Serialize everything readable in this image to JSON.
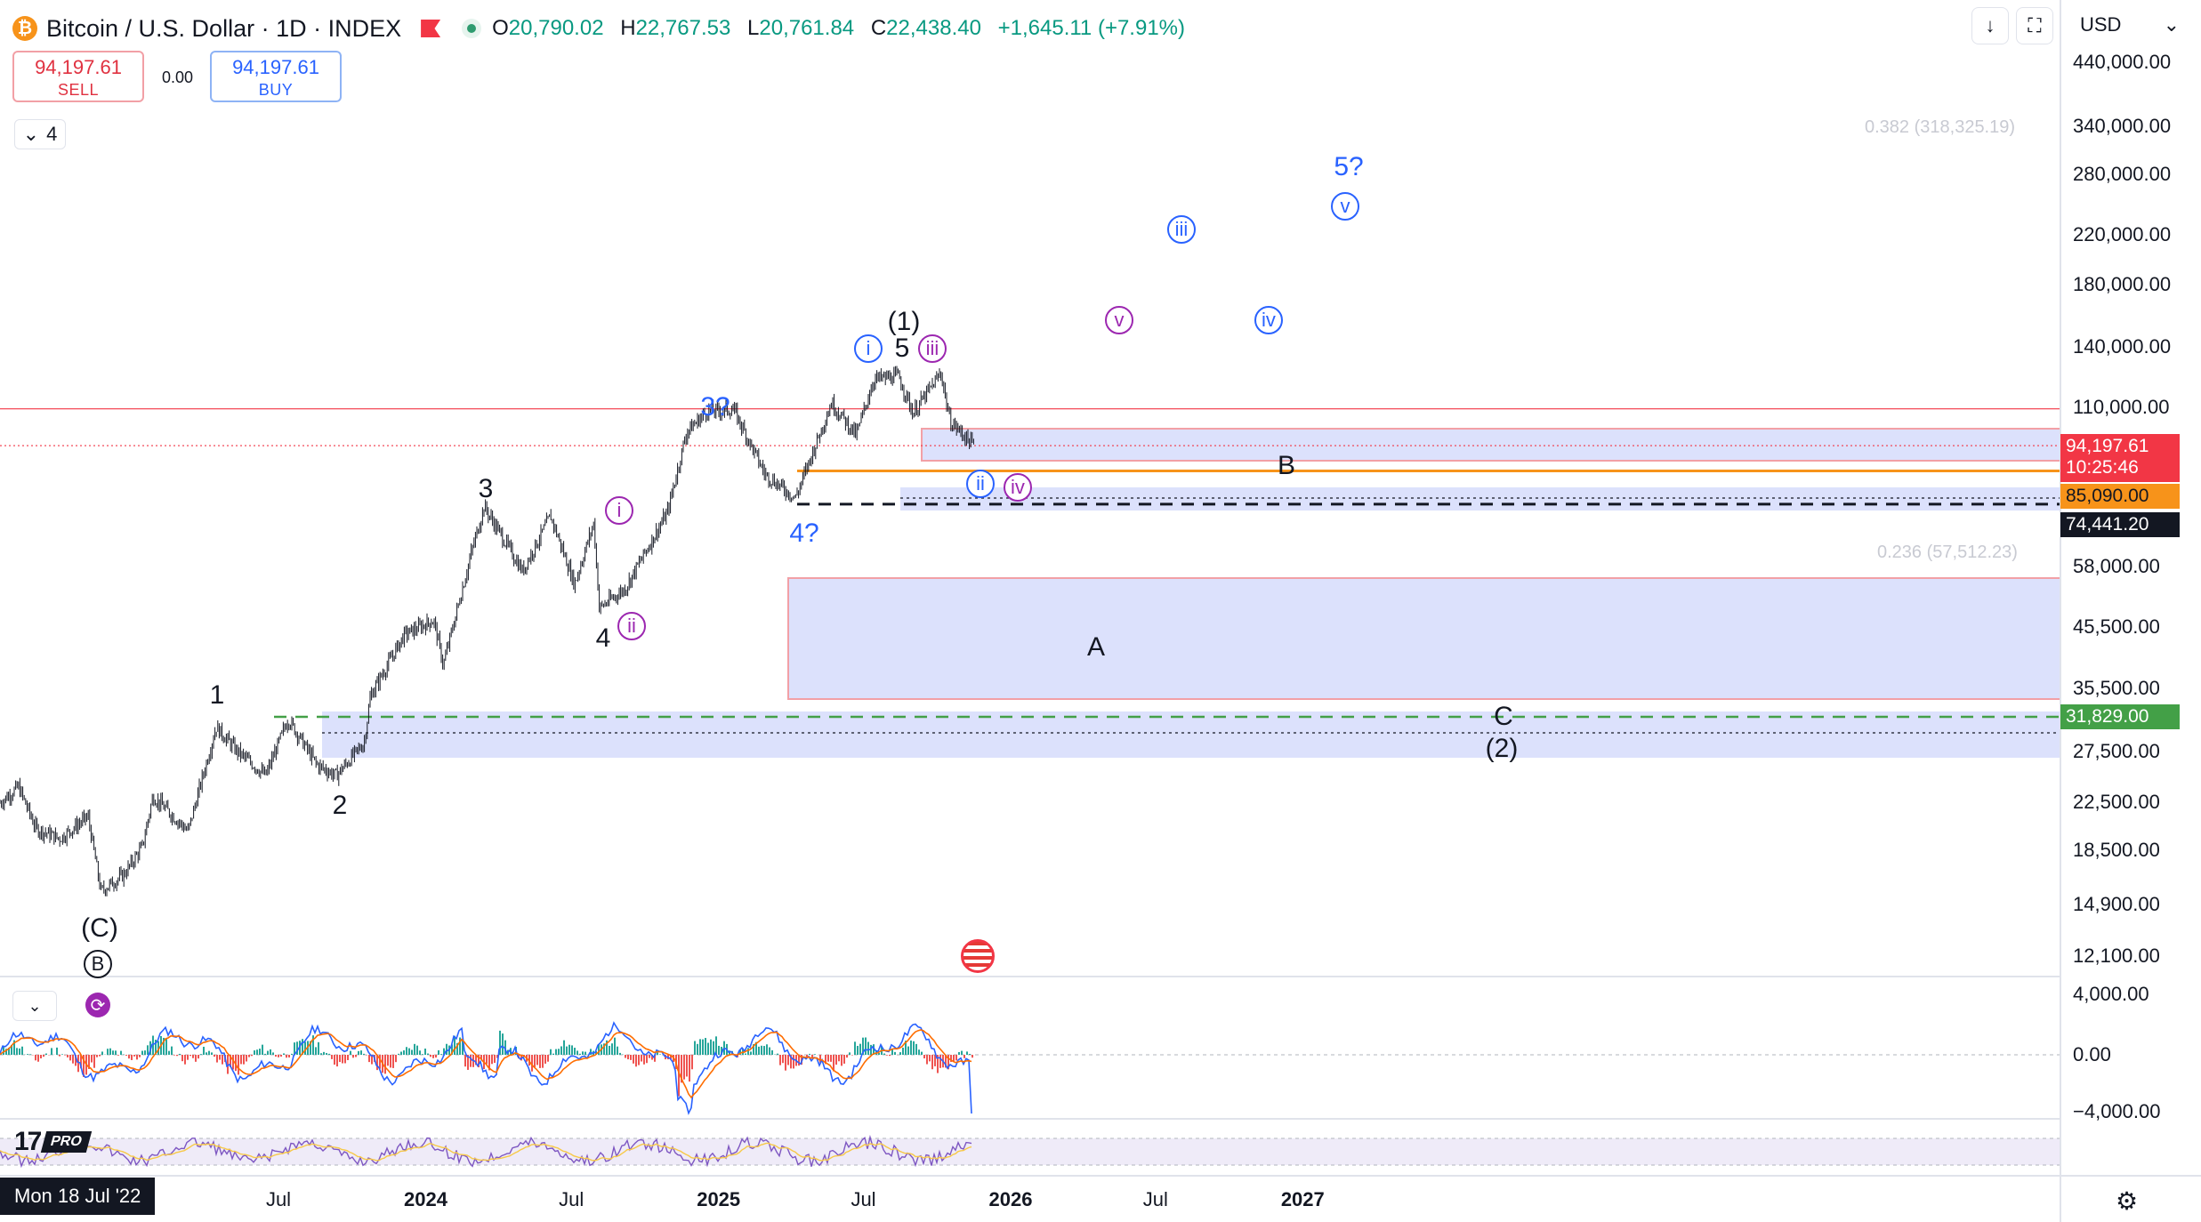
{
  "header": {
    "symbol_title": "Bitcoin / U.S. Dollar · 1D · INDEX",
    "logo_glyph": "₿",
    "ohlc": [
      {
        "label": "O",
        "value": "20,790.02"
      },
      {
        "label": "H",
        "value": "22,767.53"
      },
      {
        "label": "L",
        "value": "20,761.84"
      },
      {
        "label": "C",
        "value": "22,438.40"
      }
    ],
    "change": "+1,645.11 (+7.91%)"
  },
  "trade": {
    "sell_price": "94,197.61",
    "sell_label": "SELL",
    "spread": "0.00",
    "buy_price": "94,197.61",
    "buy_label": "BUY"
  },
  "layers_count": "4",
  "toolbar": {
    "currency": "USD",
    "download_icon": "download-icon",
    "fullscreen_icon": "fullscreen-icon"
  },
  "colors": {
    "up": "#089981",
    "down": "#f23645",
    "blue": "#2962ff",
    "purple": "#9c27b0",
    "orange": "#f7931a",
    "green": "#43a047",
    "zone": "#d6dcfb",
    "zone_border": "#f2a0a6"
  },
  "chart_data": [
    {
      "type": "line",
      "title": "Bitcoin / U.S. Dollar · 1D · INDEX",
      "y_scale": "log",
      "ylim": [
        10500,
        560000
      ],
      "xlim": [
        "2022-07-18",
        "2027-06-15"
      ],
      "y_ticks": [
        "440,000.00",
        "340,000.00",
        "280,000.00",
        "220,000.00",
        "180,000.00",
        "140,000.00",
        "110,000.00",
        "58,000.00",
        "45,500.00",
        "35,500.00",
        "27,500.00",
        "22,500.00",
        "18,500.00",
        "14,900.00",
        "12,100.00"
      ],
      "y_tick_values": [
        440000,
        340000,
        280000,
        220000,
        180000,
        140000,
        110000,
        58000,
        45500,
        35500,
        27500,
        22500,
        18500,
        14900,
        12100
      ],
      "x_ticks": [
        {
          "label": "Jul",
          "date": "2023-07-01",
          "bold": false
        },
        {
          "label": "2024",
          "date": "2024-01-01",
          "bold": true
        },
        {
          "label": "Jul",
          "date": "2024-07-01",
          "bold": false
        },
        {
          "label": "2025",
          "date": "2025-01-01",
          "bold": true
        },
        {
          "label": "Jul",
          "date": "2025-07-01",
          "bold": false
        },
        {
          "label": "2026",
          "date": "2026-01-01",
          "bold": true
        },
        {
          "label": "Jul",
          "date": "2026-07-01",
          "bold": false
        },
        {
          "label": "2027",
          "date": "2027-01-01",
          "bold": true
        }
      ],
      "crosshair_date": "Mon 18 Jul '22",
      "series": [
        {
          "values": [
            [
              "2022-07-18",
              22400
            ],
            [
              "2022-08-10",
              23900
            ],
            [
              "2022-09-01",
              20200
            ],
            [
              "2022-10-01",
              19400
            ],
            [
              "2022-11-05",
              21200
            ],
            [
              "2022-11-21",
              15700
            ],
            [
              "2022-12-20",
              16800
            ],
            [
              "2023-01-12",
              18800
            ],
            [
              "2023-01-25",
              23000
            ],
            [
              "2023-03-10",
              20000
            ],
            [
              "2023-04-14",
              30400
            ],
            [
              "2023-05-10",
              27600
            ],
            [
              "2023-06-15",
              25000
            ],
            [
              "2023-07-13",
              31400
            ],
            [
              "2023-08-18",
              26100
            ],
            [
              "2023-09-11",
              25000
            ],
            [
              "2023-10-16",
              28500
            ],
            [
              "2023-10-24",
              34500
            ],
            [
              "2023-12-05",
              44000
            ],
            [
              "2024-01-11",
              46700
            ],
            [
              "2024-01-23",
              39000
            ],
            [
              "2024-02-28",
              62000
            ],
            [
              "2024-03-14",
              73700
            ],
            [
              "2024-05-01",
              56900
            ],
            [
              "2024-06-05",
              71000
            ],
            [
              "2024-07-05",
              54000
            ],
            [
              "2024-07-29",
              69000
            ],
            [
              "2024-08-05",
              49000
            ],
            [
              "2024-09-06",
              53000
            ],
            [
              "2024-10-29",
              72000
            ],
            [
              "2024-11-22",
              99500
            ],
            [
              "2024-12-17",
              108000
            ],
            [
              "2025-01-20",
              108800
            ],
            [
              "2025-02-28",
              84000
            ],
            [
              "2025-04-07",
              76300
            ],
            [
              "2025-05-22",
              111900
            ],
            [
              "2025-06-22",
              98300
            ],
            [
              "2025-07-14",
              123000
            ],
            [
              "2025-08-14",
              124400
            ],
            [
              "2025-09-01",
              107300
            ],
            [
              "2025-10-06",
              126200
            ],
            [
              "2025-10-17",
              104000
            ],
            [
              "2025-11-16",
              94197.61
            ]
          ]
        }
      ],
      "horizontal_lines": [
        {
          "value": 110000,
          "label": "",
          "color": "#f23645"
        },
        {
          "value": 94197.61,
          "label": "94,197.61",
          "color": "#f23645"
        },
        {
          "value": 85090,
          "label": "85,090.00",
          "color": "#f7931a"
        },
        {
          "value": 74441.2,
          "label": "74,441.20",
          "color": "#131722"
        },
        {
          "value": 31829,
          "label": "31,829.00",
          "color": "#43a047"
        }
      ],
      "last_price_tag": {
        "price": "94,197.61",
        "countdown": "10:25:46"
      },
      "fib_labels": [
        "0.382 (318,325.19)",
        "0.236 (57,512.23)"
      ],
      "zones": [
        "B",
        "A",
        "C"
      ],
      "wave_labels": {
        "text": [
          "(C)",
          "1",
          "2",
          "3",
          "4",
          "3?",
          "4?",
          "(1)",
          "5",
          "B",
          "A",
          "C",
          "(2)",
          "5?"
        ],
        "circled": [
          "B",
          "i",
          "ii",
          "i",
          "iii",
          "ii",
          "iv",
          "v",
          "iii",
          "iv",
          "v"
        ]
      }
    },
    {
      "type": "bar",
      "title": "",
      "y_ticks": [
        "4,000.00",
        "0.00",
        "−4,000.00"
      ],
      "ylim": [
        -4500,
        4500
      ],
      "note_series": "MACD histogram with MACD and signal lines"
    },
    {
      "type": "line",
      "title": "",
      "note_series": "RSI oscillator band"
    }
  ]
}
